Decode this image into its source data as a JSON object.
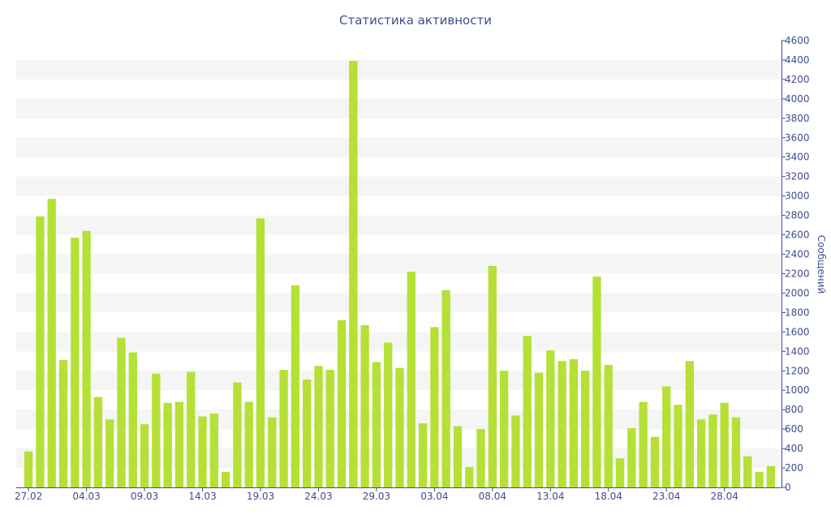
{
  "chart_data": {
    "type": "bar",
    "title": "Статистика активности",
    "xlabel": "",
    "ylabel": "Сообщений",
    "ylim": [
      0,
      4600
    ],
    "y_ticks": [
      0,
      200,
      400,
      600,
      800,
      1000,
      1200,
      1400,
      1600,
      1800,
      2000,
      2200,
      2400,
      2600,
      2800,
      3000,
      3200,
      3400,
      3600,
      3800,
      4000,
      4200,
      4400,
      4600
    ],
    "y_axis_side": "right",
    "grid": "alternating horizontal bands",
    "colors": {
      "bar": "#b5e035",
      "band": "#f5f5f5",
      "text": "#3e4d8f",
      "axis": "#3e4d8f"
    },
    "x_tick_labels": [
      {
        "index": 0,
        "label": "27.02"
      },
      {
        "index": 5,
        "label": "04.03"
      },
      {
        "index": 10,
        "label": "09.03"
      },
      {
        "index": 15,
        "label": "14.03"
      },
      {
        "index": 20,
        "label": "19.03"
      },
      {
        "index": 25,
        "label": "24.03"
      },
      {
        "index": 30,
        "label": "29.03"
      },
      {
        "index": 35,
        "label": "03.04"
      },
      {
        "index": 40,
        "label": "08.04"
      },
      {
        "index": 45,
        "label": "13.04"
      },
      {
        "index": 50,
        "label": "18.04"
      },
      {
        "index": 55,
        "label": "23.04"
      },
      {
        "index": 60,
        "label": "28.04"
      }
    ],
    "values": [
      370,
      2790,
      2970,
      1310,
      2570,
      2640,
      930,
      700,
      1540,
      1390,
      650,
      1170,
      870,
      880,
      1190,
      730,
      760,
      160,
      1080,
      880,
      2770,
      720,
      1210,
      2080,
      1110,
      1250,
      1210,
      1720,
      4390,
      1670,
      1290,
      1490,
      1230,
      2220,
      660,
      1650,
      2030,
      630,
      210,
      600,
      2280,
      1200,
      740,
      1560,
      1180,
      1410,
      1300,
      1320,
      1200,
      2170,
      1260,
      300,
      610,
      880,
      520,
      1040,
      850,
      1300,
      700,
      750,
      870,
      720,
      320,
      160,
      220
    ]
  }
}
